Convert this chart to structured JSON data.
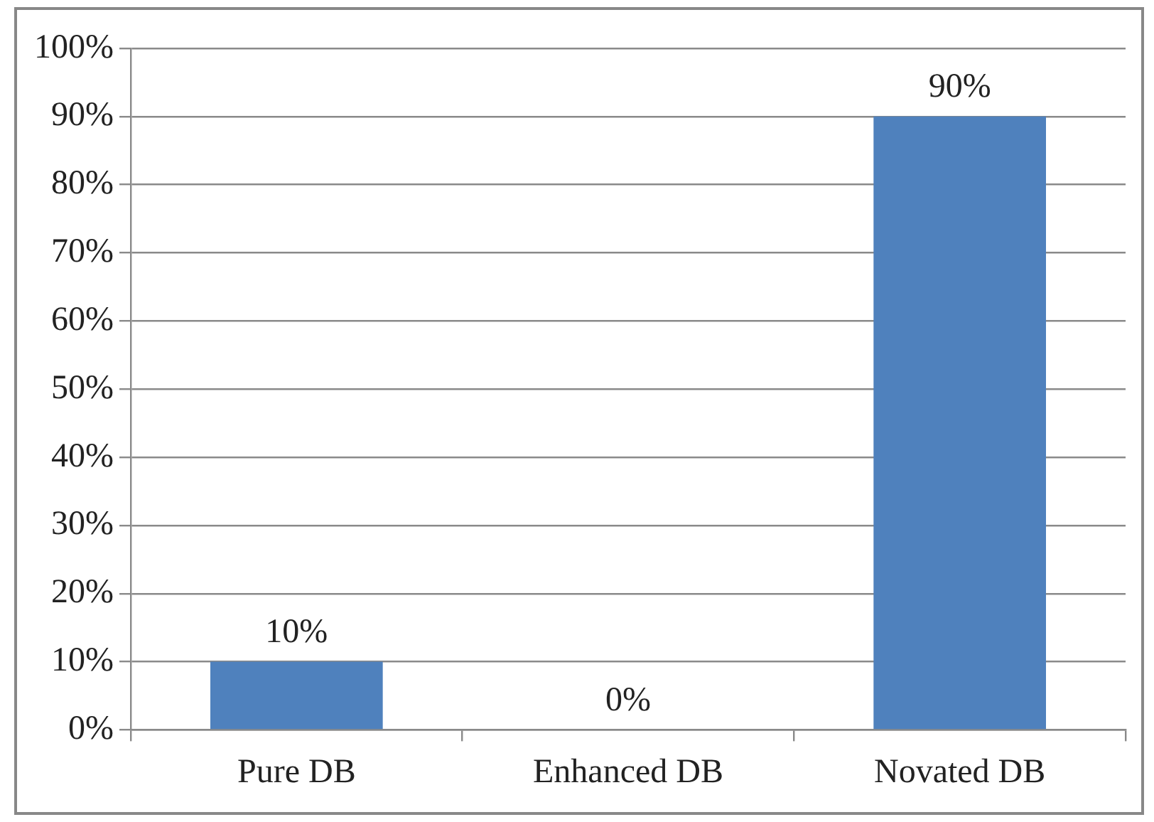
{
  "chart_data": {
    "type": "bar",
    "categories": [
      "Pure DB",
      "Enhanced DB",
      "Novated DB"
    ],
    "values": [
      10,
      0,
      90
    ],
    "color": "#4f81bd",
    "value_labels": [
      "10%",
      "0%",
      "90%"
    ],
    "ylim": [
      0,
      100
    ],
    "yticks": [
      {
        "value": 0,
        "label": "0%"
      },
      {
        "value": 10,
        "label": "10%"
      },
      {
        "value": 20,
        "label": "20%"
      },
      {
        "value": 30,
        "label": "30%"
      },
      {
        "value": 40,
        "label": "40%"
      },
      {
        "value": 50,
        "label": "50%"
      },
      {
        "value": 60,
        "label": "60%"
      },
      {
        "value": 70,
        "label": "70%"
      },
      {
        "value": 80,
        "label": "80%"
      },
      {
        "value": 90,
        "label": "90%"
      },
      {
        "value": 100,
        "label": "100%"
      }
    ],
    "grid": "y",
    "legend": false
  }
}
